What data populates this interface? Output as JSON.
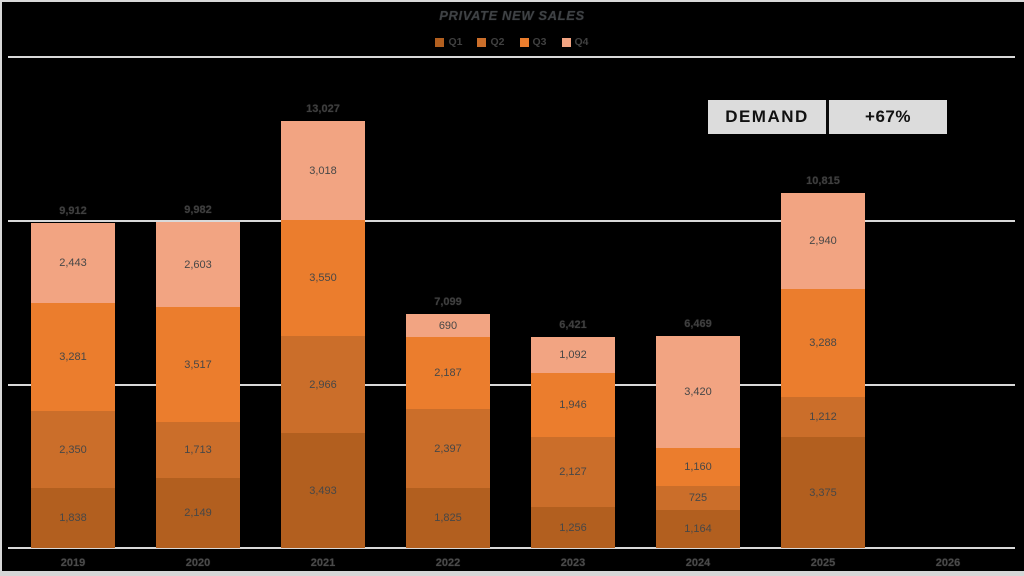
{
  "title": "PRIVATE NEW SALES",
  "badge": {
    "label": "DEMAND",
    "value": "+67%"
  },
  "chart_data": {
    "type": "bar",
    "stacked": true,
    "title": "PRIVATE NEW SALES",
    "categories": [
      "2019",
      "2020",
      "2021",
      "2022",
      "2023",
      "2024",
      "2025",
      "2026"
    ],
    "series": [
      {
        "name": "Q1",
        "color": "#B25F1F",
        "values": [
          1838,
          2149,
          3493,
          1825,
          1256,
          1164,
          3375,
          null
        ]
      },
      {
        "name": "Q2",
        "color": "#CB6E2A",
        "values": [
          2350,
          1713,
          2966,
          2397,
          2127,
          725,
          1212,
          null
        ]
      },
      {
        "name": "Q3",
        "color": "#EB7D2D",
        "values": [
          3281,
          3517,
          3550,
          2187,
          1946,
          1160,
          3288,
          null
        ]
      },
      {
        "name": "Q4",
        "color": "#F2A482",
        "values": [
          2443,
          2603,
          3018,
          690,
          1092,
          3420,
          2940,
          null
        ]
      }
    ],
    "totals": [
      9912,
      9982,
      13027,
      7099,
      6421,
      6469,
      10815,
      null
    ],
    "xlabel": "",
    "ylabel": "",
    "ylim": [
      0,
      15000
    ],
    "gridline_values": [
      5000,
      10000,
      15000
    ],
    "grid_color": "#D9D9D9",
    "background": "#000000",
    "segment_label_color": "#474747",
    "legend_position": "top"
  }
}
